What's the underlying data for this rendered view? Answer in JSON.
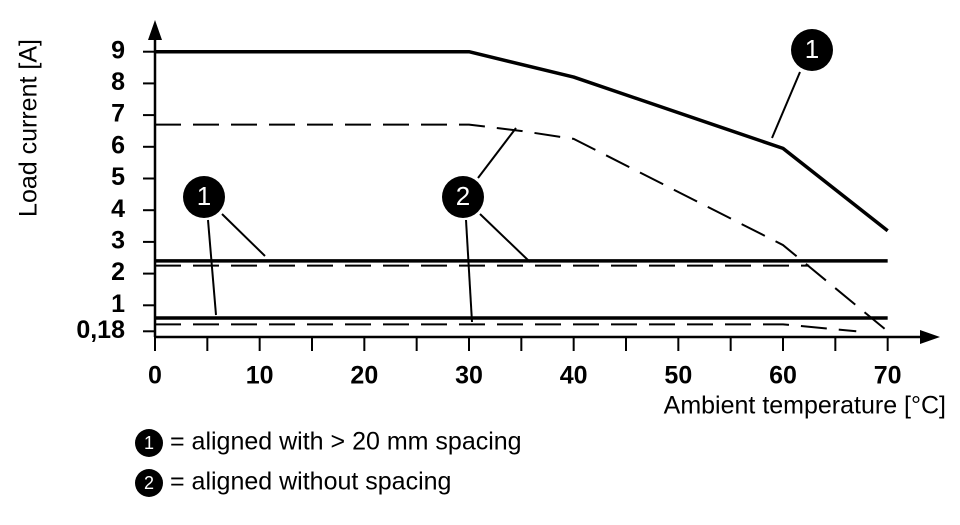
{
  "chart_data": {
    "type": "line",
    "ylabel": "Load current [A]",
    "xlabel": "Ambient temperature [°C]",
    "xlim": [
      0,
      75
    ],
    "ylim": [
      0,
      10
    ],
    "xticks": [
      0,
      10,
      20,
      30,
      40,
      50,
      60,
      70
    ],
    "xminorticks": [
      5,
      15,
      25,
      35,
      45,
      55,
      65
    ],
    "yticks": [
      {
        "value": 0.18,
        "label": "0,18"
      },
      1,
      2,
      3,
      4,
      5,
      6,
      7,
      8,
      9
    ],
    "series": [
      {
        "color": "#000000",
        "dashed": false,
        "x": [
          0,
          30,
          40,
          60,
          70
        ],
        "values": [
          9,
          9,
          8.2,
          5.95,
          3.35
        ]
      },
      {
        "color": "#000000",
        "dashed": true,
        "x": [
          0,
          30,
          35,
          40,
          60,
          70
        ],
        "values": [
          6.7,
          6.7,
          6.5,
          6.25,
          2.9,
          0.18
        ]
      },
      {
        "color": "#000000",
        "dashed": false,
        "x": [
          0,
          70
        ],
        "values": [
          2.4,
          2.4
        ]
      },
      {
        "color": "#000000",
        "dashed": true,
        "x": [
          0,
          62.5
        ],
        "values": [
          2.25,
          2.25
        ]
      },
      {
        "color": "#000000",
        "dashed": false,
        "x": [
          0,
          70
        ],
        "values": [
          0.6,
          0.6
        ]
      },
      {
        "color": "#000000",
        "dashed": true,
        "x": [
          0,
          60,
          67
        ],
        "values": [
          0.4,
          0.4,
          0.18
        ]
      }
    ],
    "annotations": [
      {
        "text": "1"
      },
      {
        "text": "1"
      },
      {
        "text": "2"
      }
    ],
    "legend": [
      {
        "marker": "1",
        "label": "= aligned with > 20 mm spacing"
      },
      {
        "marker": "2",
        "label": "= aligned without spacing"
      }
    ]
  }
}
